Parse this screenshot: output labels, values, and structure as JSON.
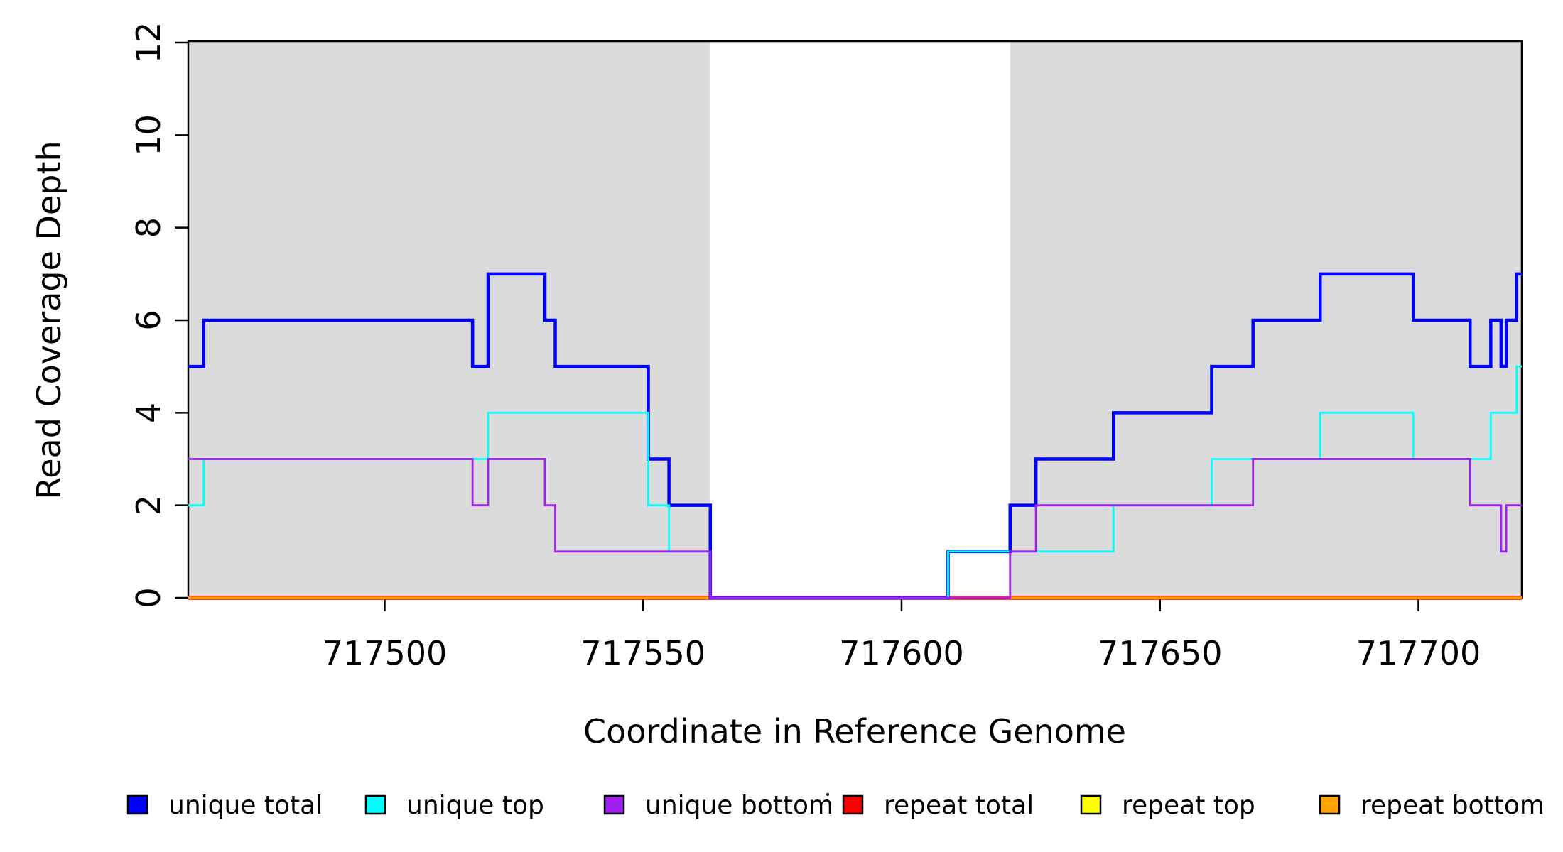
{
  "figure": {
    "background": "#ffffff",
    "shade_color": "#dbdbdb",
    "axis_color": "#000000"
  },
  "chart_data": {
    "type": "line",
    "subtype": "step-coverage",
    "title": "",
    "xlabel": "Coordinate in Reference Genome",
    "ylabel": "Read Coverage Depth",
    "xlim": [
      717462,
      717720
    ],
    "ylim": [
      0,
      12
    ],
    "x_ticks": [
      717500,
      717550,
      717600,
      717650,
      717700
    ],
    "y_ticks": [
      0,
      2,
      4,
      6,
      8,
      10,
      12
    ],
    "grid": false,
    "legend_position": "bottom",
    "shaded_regions": [
      {
        "name": "left-shaded-region",
        "from": 717462,
        "to": 717563
      },
      {
        "name": "right-shaded-region",
        "from": 717621,
        "to": 717720
      }
    ],
    "series": [
      {
        "name": "unique total",
        "color": "#0000ff",
        "lwd": 4.5,
        "segments": [
          [
            717462,
            717465,
            5
          ],
          [
            717465,
            717517,
            6
          ],
          [
            717517,
            717520,
            5
          ],
          [
            717520,
            717531,
            7
          ],
          [
            717531,
            717533,
            6
          ],
          [
            717533,
            717551,
            5
          ],
          [
            717551,
            717555,
            3
          ],
          [
            717555,
            717563,
            2
          ],
          [
            717563,
            717609,
            0
          ],
          [
            717609,
            717621,
            1
          ],
          [
            717621,
            717626,
            2
          ],
          [
            717626,
            717641,
            3
          ],
          [
            717641,
            717660,
            4
          ],
          [
            717660,
            717668,
            5
          ],
          [
            717668,
            717681,
            6
          ],
          [
            717681,
            717699,
            7
          ],
          [
            717699,
            717710,
            6
          ],
          [
            717710,
            717714,
            5
          ],
          [
            717714,
            717716,
            6
          ],
          [
            717716,
            717717,
            5
          ],
          [
            717717,
            717719,
            6
          ],
          [
            717719,
            717720,
            7
          ]
        ]
      },
      {
        "name": "unique top",
        "color": "#00ffff",
        "lwd": 2.8,
        "segments": [
          [
            717462,
            717465,
            2
          ],
          [
            717465,
            717520,
            3
          ],
          [
            717520,
            717551,
            4
          ],
          [
            717551,
            717555,
            2
          ],
          [
            717555,
            717563,
            1
          ],
          [
            717563,
            717609,
            0
          ],
          [
            717609,
            717641,
            1
          ],
          [
            717641,
            717660,
            2
          ],
          [
            717660,
            717681,
            3
          ],
          [
            717681,
            717699,
            4
          ],
          [
            717699,
            717714,
            3
          ],
          [
            717714,
            717719,
            4
          ],
          [
            717719,
            717720,
            5
          ]
        ]
      },
      {
        "name": "unique bottom",
        "color": "#a020f0",
        "lwd": 2.8,
        "segments": [
          [
            717462,
            717517,
            3
          ],
          [
            717517,
            717520,
            2
          ],
          [
            717520,
            717531,
            3
          ],
          [
            717531,
            717533,
            2
          ],
          [
            717533,
            717563,
            1
          ],
          [
            717563,
            717621,
            0
          ],
          [
            717621,
            717626,
            1
          ],
          [
            717626,
            717668,
            2
          ],
          [
            717668,
            717710,
            3
          ],
          [
            717710,
            717716,
            2
          ],
          [
            717716,
            717717,
            1
          ],
          [
            717717,
            717720,
            2
          ]
        ]
      },
      {
        "name": "repeat total",
        "color": "#ff0000",
        "lwd": 5.5,
        "segments": [
          [
            717462,
            717720,
            0
          ]
        ]
      },
      {
        "name": "repeat top",
        "color": "#ffff00",
        "lwd": 3,
        "segments": [
          [
            717462,
            717720,
            0
          ]
        ]
      },
      {
        "name": "repeat bottom",
        "color": "#ffa500",
        "lwd": 3.2,
        "segments": [
          [
            717462,
            717720,
            0
          ]
        ]
      }
    ],
    "draw_order": [
      "repeat total",
      "repeat top",
      "repeat bottom",
      "unique total",
      "unique top",
      "unique bottom"
    ]
  },
  "legend": {
    "entries": [
      {
        "label": "unique total",
        "color": "#0000ff"
      },
      {
        "label": "unique top",
        "color": "#00ffff"
      },
      {
        "label": "unique bottom",
        "color": "#a020f0"
      },
      {
        "label": "repeat total",
        "color": "#ff0000"
      },
      {
        "label": "repeat top",
        "color": "#ffff00"
      },
      {
        "label": "repeat bottom",
        "color": "#ffa500"
      }
    ]
  }
}
